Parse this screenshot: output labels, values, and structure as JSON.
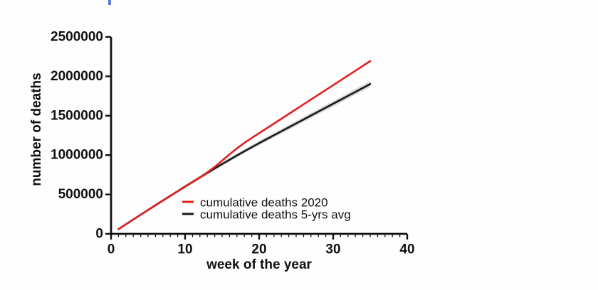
{
  "page": {
    "background": "#ffffff"
  },
  "artifact": {
    "name": "stray-cursor-mark",
    "color": "#4466cc"
  },
  "chart_data": {
    "type": "line",
    "title": "",
    "x_title": "week of the year",
    "y_title": "number of deaths",
    "xlim": [
      0,
      40
    ],
    "ylim": [
      0,
      2500000
    ],
    "x_ticks": [
      0,
      10,
      20,
      30,
      40
    ],
    "y_ticks": [
      0,
      500000,
      1000000,
      1500000,
      2000000,
      2500000
    ],
    "x_major_step": 10,
    "x_minor_step": 1,
    "grid": false,
    "legend_position": "inside-bottom-center",
    "axis_color": "#111111",
    "x": [
      1,
      2,
      3,
      4,
      5,
      6,
      7,
      8,
      9,
      10,
      11,
      12,
      13,
      14,
      15,
      16,
      17,
      18,
      19,
      20,
      21,
      22,
      23,
      24,
      25,
      26,
      27,
      28,
      29,
      30,
      31,
      32,
      33,
      34,
      35
    ],
    "series": [
      {
        "name": "cumulative deaths 2020",
        "color": "#e02020",
        "values": [
          60000,
          121000,
          182000,
          243000,
          303000,
          363000,
          423000,
          482000,
          541000,
          600000,
          658000,
          716000,
          780000,
          850000,
          930000,
          1010000,
          1085000,
          1155000,
          1218000,
          1278000,
          1339000,
          1400000,
          1461000,
          1522000,
          1583000,
          1644000,
          1705000,
          1766000,
          1827000,
          1888000,
          1949000,
          2010000,
          2071000,
          2132000,
          2193000
        ]
      },
      {
        "name": "cumulative deaths 5-yrs avg",
        "color": "#1a1a1a",
        "band_color": "#d6d6d6",
        "values": [
          60000,
          121000,
          182000,
          243000,
          303000,
          363000,
          423000,
          482000,
          541000,
          600000,
          658000,
          716000,
          774000,
          830000,
          886000,
          941000,
          995000,
          1048000,
          1100000,
          1152000,
          1202000,
          1252000,
          1302000,
          1352000,
          1402000,
          1452000,
          1502000,
          1552000,
          1602000,
          1652000,
          1702000,
          1752000,
          1802000,
          1852000,
          1902000
        ],
        "band_halfwidth": [
          13000,
          14000,
          14000,
          15000,
          16000,
          17000,
          18000,
          18000,
          19000,
          20000,
          21000,
          22000,
          22000,
          23000,
          24000,
          25000,
          26000,
          26000,
          27000,
          28000,
          29000,
          30000,
          30000,
          31000,
          32000,
          33000,
          34000,
          34000,
          35000,
          36000,
          37000,
          38000,
          38000,
          39000,
          40000
        ]
      }
    ]
  }
}
